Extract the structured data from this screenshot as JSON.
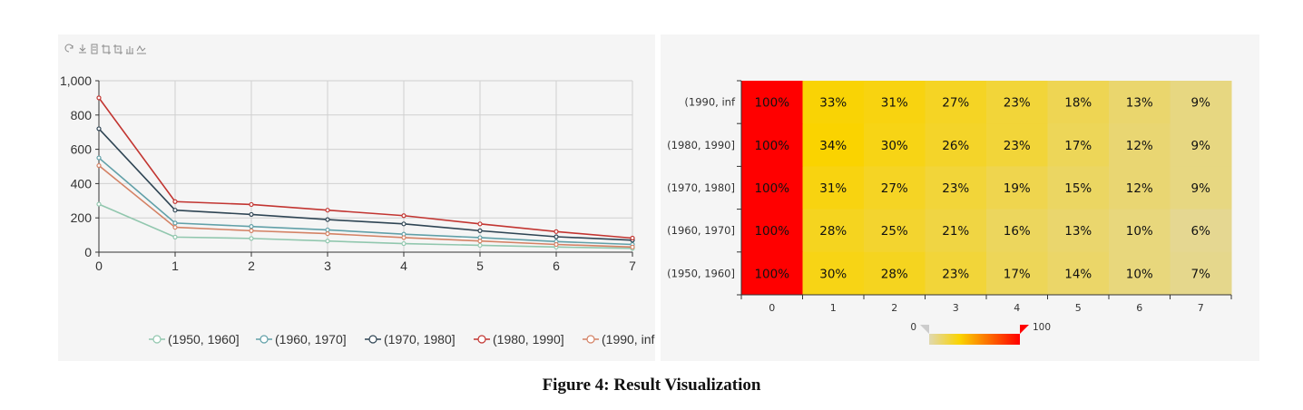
{
  "caption": "Figure 4: Result Visualization",
  "toolbar": {
    "icons": [
      "refresh-icon",
      "download-icon",
      "data-view-icon",
      "zoom-icon",
      "zoom-reset-icon",
      "bar-chart-icon",
      "line-chart-icon"
    ]
  },
  "colors": {
    "series": [
      "#91c7ae",
      "#61a0a8",
      "#2f4554",
      "#c23531",
      "#d48265"
    ],
    "heatmap_low": "#e0d8b0",
    "heatmap_mid": "#fad300",
    "heatmap_high": "#ff0000",
    "panel_bg": "#f5f5f5"
  },
  "chart_data": [
    {
      "type": "line",
      "x": [
        0,
        1,
        2,
        3,
        4,
        5,
        6,
        7
      ],
      "ylim": [
        0,
        1000
      ],
      "yticks": [
        "0",
        "200",
        "400",
        "600",
        "800",
        "1,000"
      ],
      "grid": true,
      "legend_position": "bottom",
      "series": [
        {
          "name": "(1950, 1960]",
          "values": [
            280,
            88,
            80,
            65,
            50,
            40,
            30,
            22
          ]
        },
        {
          "name": "(1960, 1970]",
          "values": [
            550,
            170,
            150,
            130,
            105,
            85,
            62,
            45
          ]
        },
        {
          "name": "(1970, 1980]",
          "values": [
            720,
            245,
            220,
            190,
            165,
            125,
            90,
            70
          ]
        },
        {
          "name": "(1980, 1990]",
          "values": [
            900,
            295,
            278,
            245,
            213,
            165,
            120,
            82
          ]
        },
        {
          "name": "(1990, inf",
          "values": [
            505,
            145,
            125,
            108,
            85,
            65,
            45,
            30
          ]
        }
      ]
    },
    {
      "type": "heatmap",
      "x": [
        "0",
        "1",
        "2",
        "3",
        "4",
        "5",
        "6",
        "7"
      ],
      "y": [
        "(1990, inf",
        "(1980, 1990]",
        "(1970, 1980]",
        "(1960, 1970]",
        "(1950, 1960]"
      ],
      "values": [
        [
          100,
          33,
          31,
          27,
          23,
          18,
          13,
          9
        ],
        [
          100,
          34,
          30,
          26,
          23,
          17,
          12,
          9
        ],
        [
          100,
          31,
          27,
          23,
          19,
          15,
          12,
          9
        ],
        [
          100,
          28,
          25,
          21,
          16,
          13,
          10,
          6
        ],
        [
          100,
          30,
          28,
          23,
          17,
          14,
          10,
          7
        ]
      ],
      "value_suffix": "%",
      "visual_map": {
        "min": "0",
        "max": "100",
        "range": [
          0,
          100
        ]
      }
    }
  ]
}
